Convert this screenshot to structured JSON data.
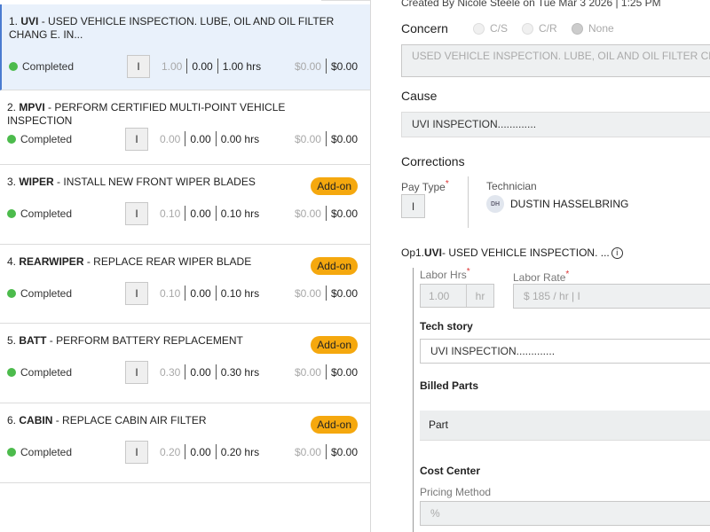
{
  "operations": [
    {
      "num": "1.",
      "code": "UVI",
      "desc": " - USED VEHICLE INSPECTION. LUBE, OIL AND OIL FILTER CHANG E. IN...",
      "status": "Completed",
      "pay_type": "I",
      "v1": "1.00",
      "v2": "0.00",
      "hrs": "1.00 hrs",
      "cost1": "$0.00",
      "cost2": "$0.00",
      "badge": null,
      "selected": true
    },
    {
      "num": "2.",
      "code": "MPVI",
      "desc": " - PERFORM CERTIFIED MULTI-POINT VEHICLE INSPECTION",
      "status": "Completed",
      "pay_type": "I",
      "v1": "0.00",
      "v2": "0.00",
      "hrs": "0.00 hrs",
      "cost1": "$0.00",
      "cost2": "$0.00",
      "badge": null
    },
    {
      "num": "3.",
      "code": "WIPER",
      "desc": " - INSTALL NEW FRONT WIPER BLADES",
      "status": "Completed",
      "pay_type": "I",
      "v1": "0.10",
      "v2": "0.00",
      "hrs": "0.10 hrs",
      "cost1": "$0.00",
      "cost2": "$0.00",
      "badge": "Add-on"
    },
    {
      "num": "4.",
      "code": "REARWIPER",
      "desc": " - REPLACE REAR WIPER BLADE",
      "status": "Completed",
      "pay_type": "I",
      "v1": "0.10",
      "v2": "0.00",
      "hrs": "0.10 hrs",
      "cost1": "$0.00",
      "cost2": "$0.00",
      "badge": "Add-on"
    },
    {
      "num": "5.",
      "code": "BATT",
      "desc": " - PERFORM BATTERY REPLACEMENT",
      "status": "Completed",
      "pay_type": "I",
      "v1": "0.30",
      "v2": "0.00",
      "hrs": "0.30 hrs",
      "cost1": "$0.00",
      "cost2": "$0.00",
      "badge": "Add-on"
    },
    {
      "num": "6.",
      "code": "CABIN",
      "desc": " - REPLACE CABIN AIR FILTER",
      "status": "Completed",
      "pay_type": "I",
      "v1": "0.20",
      "v2": "0.00",
      "hrs": "0.20 hrs",
      "cost1": "$0.00",
      "cost2": "$0.00",
      "badge": "Add-on"
    }
  ],
  "detail": {
    "created": "Created By Nicole Steele on Tue Mar 3 2026 | 1:25 PM",
    "concern_label": "Concern",
    "concern_options": [
      "C/S",
      "C/R",
      "None"
    ],
    "concern_selected": "None",
    "concern_text": "USED VEHICLE INSPECTION. LUBE, OIL AND OIL FILTER CHANGE. IN...",
    "cause_label": "Cause",
    "cause_text": "UVI INSPECTION.............",
    "corrections_label": "Corrections",
    "pay_type_label": "Pay Type",
    "pay_type": "I",
    "technician_label": "Technician",
    "tech_initials": "DH",
    "tech_name": "DUSTIN HASSELBRING",
    "op_prefix": "Op1. ",
    "op_code": "UVI",
    "op_desc": " - USED VEHICLE INSPECTION. ...",
    "labor_hrs_label": "Labor Hrs",
    "labor_hrs": "1.00",
    "labor_unit": "hr",
    "labor_rate_label": "Labor Rate",
    "labor_rate": "$ 185 / hr | I",
    "tech_story_label": "Tech story",
    "tech_story": "UVI INSPECTION.............",
    "billed_parts_label": "Billed Parts",
    "part_header": "Part",
    "cost_center_label": "Cost Center",
    "pricing_method_label": "Pricing Method",
    "pricing_method": "%",
    "required_mark": "*"
  }
}
